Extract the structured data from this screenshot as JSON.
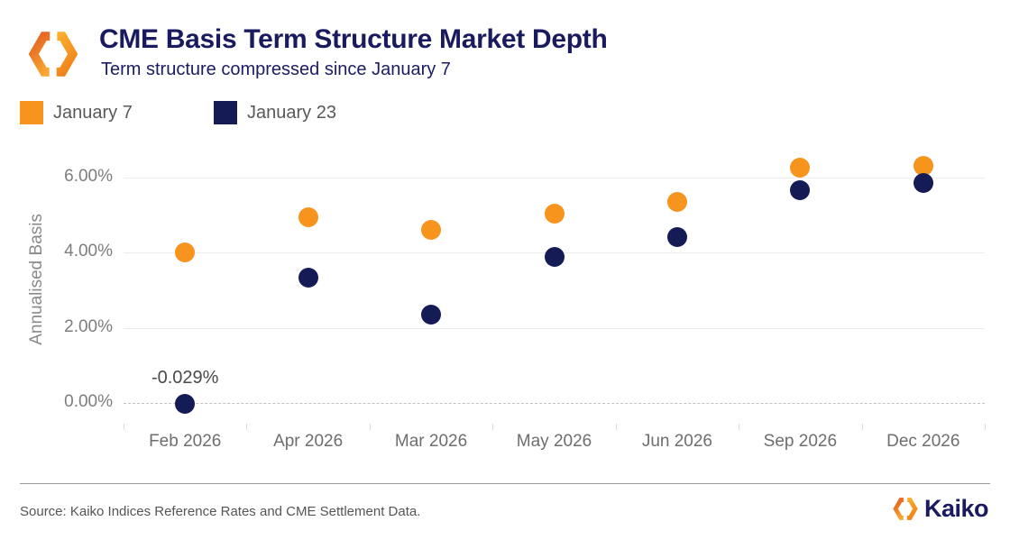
{
  "header": {
    "title": "CME Basis Term Structure Market Depth",
    "subtitle": "Term structure compressed since January 7"
  },
  "legend": [
    {
      "label": "January 7",
      "color": "#F7941E"
    },
    {
      "label": "January 23",
      "color": "#151C55"
    }
  ],
  "chart_data": {
    "type": "scatter",
    "categories": [
      "Feb 2026",
      "Apr 2026",
      "Mar 2026",
      "May 2026",
      "Jun 2026",
      "Sep 2026",
      "Dec 2026"
    ],
    "series": [
      {
        "name": "January 7",
        "color": "#F7941E",
        "values": [
          4.02,
          4.95,
          4.61,
          5.05,
          5.35,
          6.26,
          6.32
        ]
      },
      {
        "name": "January 23",
        "color": "#151C55",
        "values": [
          -0.029,
          3.34,
          2.35,
          3.9,
          4.42,
          5.66,
          5.87
        ]
      }
    ],
    "title": "",
    "xlabel": "",
    "ylabel": "Annualised Basis",
    "y_ticks": [
      "0.00%",
      "2.00%",
      "4.00%",
      "6.00%"
    ],
    "y_tick_values": [
      0,
      2,
      4,
      6
    ],
    "ylim": [
      -0.55,
      6.89
    ],
    "grid": true,
    "legend_position": "top-left",
    "annotation": {
      "text": "-0.029%",
      "category_index": 0,
      "series": "January 23",
      "value": -0.029
    }
  },
  "footer": {
    "source": "Source: Kaiko Indices Reference Rates and CME Settlement Data.",
    "brand": "Kaiko"
  }
}
